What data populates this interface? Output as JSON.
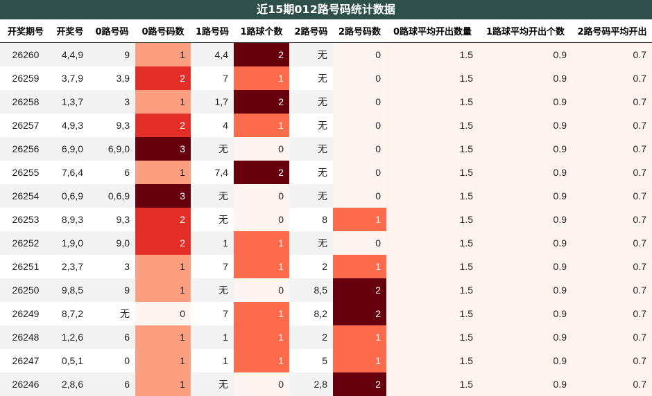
{
  "title": "近15期012路号码统计数据",
  "chart_data": {
    "type": "table",
    "columns": [
      "开奖期号",
      "开奖号",
      "0路号码",
      "0路号码数",
      "1路号码",
      "1路球个数",
      "2路号码",
      "2路号码数",
      "0路球平均开出数量",
      "1路球平均开出个数",
      "2路号码平均开出"
    ],
    "rows": [
      [
        "26260",
        "4,4,9",
        "9",
        1,
        "4,4",
        2,
        "无",
        0,
        "1.5",
        "0.9",
        "0.7"
      ],
      [
        "26259",
        "3,7,9",
        "3,9",
        2,
        "7",
        1,
        "无",
        0,
        "1.5",
        "0.9",
        "0.7"
      ],
      [
        "26258",
        "1,3,7",
        "3",
        1,
        "1,7",
        2,
        "无",
        0,
        "1.5",
        "0.9",
        "0.7"
      ],
      [
        "26257",
        "4,9,3",
        "9,3",
        2,
        "4",
        1,
        "无",
        0,
        "1.5",
        "0.9",
        "0.7"
      ],
      [
        "26256",
        "6,9,0",
        "6,9,0",
        3,
        "无",
        0,
        "无",
        0,
        "1.5",
        "0.9",
        "0.7"
      ],
      [
        "26255",
        "7,6,4",
        "6",
        1,
        "7,4",
        2,
        "无",
        0,
        "1.5",
        "0.9",
        "0.7"
      ],
      [
        "26254",
        "0,6,9",
        "0,6,9",
        3,
        "无",
        0,
        "无",
        0,
        "1.5",
        "0.9",
        "0.7"
      ],
      [
        "26253",
        "8,9,3",
        "9,3",
        2,
        "无",
        0,
        "8",
        1,
        "1.5",
        "0.9",
        "0.7"
      ],
      [
        "26252",
        "1,9,0",
        "9,0",
        2,
        "1",
        1,
        "无",
        0,
        "1.5",
        "0.9",
        "0.7"
      ],
      [
        "26251",
        "2,3,7",
        "3",
        1,
        "7",
        1,
        "2",
        1,
        "1.5",
        "0.9",
        "0.7"
      ],
      [
        "26250",
        "9,8,5",
        "9",
        1,
        "无",
        0,
        "8,5",
        2,
        "1.5",
        "0.9",
        "0.7"
      ],
      [
        "26249",
        "8,7,2",
        "无",
        0,
        "7",
        1,
        "8,2",
        2,
        "1.5",
        "0.9",
        "0.7"
      ],
      [
        "26248",
        "1,2,6",
        "6",
        1,
        "1",
        1,
        "2",
        1,
        "1.5",
        "0.9",
        "0.7"
      ],
      [
        "26247",
        "0,5,1",
        "0",
        1,
        "1",
        1,
        "5",
        1,
        "1.5",
        "0.9",
        "0.7"
      ],
      [
        "26246",
        "2,8,6",
        "6",
        1,
        "无",
        0,
        "2,8",
        2,
        "1.5",
        "0.9",
        "0.7"
      ]
    ]
  }
}
